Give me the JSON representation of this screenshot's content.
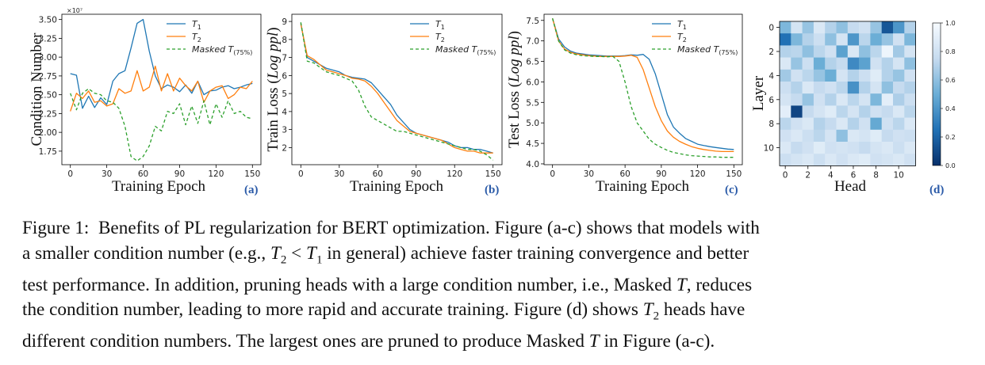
{
  "chart_data": [
    {
      "panel": "(a)",
      "type": "line",
      "xlabel": "Training Epoch",
      "ylabel": "Condition Number",
      "y_scale_note": "×10⁷",
      "xticks": [
        0,
        30,
        60,
        90,
        120,
        150
      ],
      "yticks": [
        "1.75",
        "2.00",
        "2.25",
        "2.50",
        "2.75",
        "3.00",
        "3.25",
        "3.50"
      ],
      "xlim": [
        -7,
        157
      ],
      "ylim": [
        1.57,
        3.57
      ],
      "legend_loc": "upper right",
      "x": [
        0,
        5,
        10,
        15,
        20,
        25,
        30,
        35,
        40,
        45,
        50,
        55,
        60,
        65,
        70,
        75,
        80,
        85,
        90,
        95,
        100,
        105,
        110,
        115,
        120,
        125,
        130,
        135,
        140,
        145,
        150
      ],
      "series": [
        {
          "name": "T1",
          "style": "solid",
          "color": "#1f77b4",
          "values": [
            2.78,
            2.76,
            2.32,
            2.48,
            2.33,
            2.46,
            2.37,
            2.68,
            2.78,
            2.82,
            3.12,
            3.45,
            3.5,
            3.08,
            2.75,
            2.58,
            2.63,
            2.6,
            2.54,
            2.63,
            2.52,
            2.68,
            2.5,
            2.55,
            2.56,
            2.6,
            2.62,
            2.58,
            2.6,
            2.63,
            2.65
          ]
        },
        {
          "name": "T2",
          "style": "solid",
          "color": "#ff7f0e",
          "values": [
            2.28,
            2.52,
            2.45,
            2.55,
            2.4,
            2.42,
            2.35,
            2.38,
            2.58,
            2.52,
            2.55,
            2.82,
            2.55,
            2.6,
            2.88,
            2.55,
            2.78,
            2.55,
            2.72,
            2.62,
            2.55,
            2.68,
            2.4,
            2.55,
            2.6,
            2.62,
            2.45,
            2.5,
            2.6,
            2.58,
            2.68
          ]
        },
        {
          "name": "Masked T(75%)",
          "style": "dashed",
          "color": "#2ca02c",
          "values": [
            2.52,
            2.3,
            2.52,
            2.58,
            2.52,
            2.5,
            2.42,
            2.4,
            2.32,
            2.08,
            1.68,
            1.62,
            1.68,
            1.82,
            2.08,
            2.02,
            2.28,
            2.25,
            2.38,
            2.1,
            2.35,
            2.12,
            2.42,
            2.1,
            2.38,
            2.2,
            2.42,
            2.25,
            2.28,
            2.2,
            2.18
          ]
        }
      ]
    },
    {
      "panel": "(b)",
      "type": "line",
      "xlabel": "Training Epoch",
      "ylabel": "Train Loss (Log ppl)",
      "xticks": [
        0,
        30,
        60,
        90,
        120,
        150
      ],
      "yticks": [
        "2",
        "3",
        "4",
        "5",
        "6",
        "7",
        "8",
        "9"
      ],
      "xlim": [
        -7,
        157
      ],
      "ylim": [
        1.05,
        9.4
      ],
      "legend_loc": "upper right",
      "x": [
        0,
        5,
        10,
        15,
        20,
        25,
        30,
        35,
        40,
        45,
        50,
        55,
        60,
        65,
        70,
        75,
        80,
        85,
        90,
        95,
        100,
        105,
        110,
        115,
        120,
        125,
        130,
        135,
        140,
        145,
        150
      ],
      "series": [
        {
          "name": "T1",
          "style": "solid",
          "color": "#1f77b4",
          "values": [
            8.9,
            7.0,
            6.8,
            6.6,
            6.4,
            6.3,
            6.2,
            6.0,
            5.9,
            5.85,
            5.8,
            5.6,
            5.2,
            4.8,
            4.4,
            3.8,
            3.4,
            3.0,
            2.8,
            2.7,
            2.6,
            2.5,
            2.4,
            2.3,
            2.1,
            2.0,
            2.0,
            1.9,
            1.9,
            1.8,
            1.7
          ]
        },
        {
          "name": "T2",
          "style": "solid",
          "color": "#ff7f0e",
          "values": [
            8.85,
            7.1,
            6.9,
            6.6,
            6.3,
            6.2,
            6.1,
            6.0,
            5.85,
            5.8,
            5.7,
            5.4,
            5.0,
            4.5,
            4.0,
            3.5,
            3.2,
            2.9,
            2.8,
            2.7,
            2.6,
            2.5,
            2.4,
            2.2,
            2.0,
            1.9,
            1.8,
            1.8,
            1.7,
            1.7,
            1.7
          ]
        },
        {
          "name": "Masked T(75%)",
          "style": "dashed",
          "color": "#2ca02c",
          "values": [
            8.95,
            6.8,
            6.7,
            6.45,
            6.2,
            6.1,
            6.0,
            5.85,
            5.7,
            5.2,
            4.3,
            3.7,
            3.5,
            3.3,
            3.1,
            2.9,
            2.9,
            2.8,
            2.7,
            2.6,
            2.5,
            2.4,
            2.3,
            2.2,
            2.1,
            2.0,
            1.9,
            1.9,
            1.8,
            1.6,
            1.3
          ]
        }
      ]
    },
    {
      "panel": "(c)",
      "type": "line",
      "xlabel": "Training Epoch",
      "ylabel": "Test Loss (Log ppl)",
      "xticks": [
        0,
        30,
        60,
        90,
        120,
        150
      ],
      "yticks": [
        "4.0",
        "4.5",
        "5.0",
        "5.5",
        "6.0",
        "6.5",
        "7.0",
        "7.5"
      ],
      "xlim": [
        -7,
        157
      ],
      "ylim": [
        3.98,
        7.65
      ],
      "legend_loc": "upper right",
      "x": [
        0,
        5,
        10,
        15,
        20,
        25,
        30,
        35,
        40,
        45,
        50,
        55,
        60,
        65,
        70,
        75,
        80,
        85,
        90,
        95,
        100,
        105,
        110,
        115,
        120,
        125,
        130,
        135,
        140,
        145,
        150
      ],
      "series": [
        {
          "name": "T1",
          "style": "solid",
          "color": "#1f77b4",
          "values": [
            7.55,
            7.05,
            6.85,
            6.75,
            6.7,
            6.68,
            6.66,
            6.65,
            6.64,
            6.63,
            6.63,
            6.63,
            6.64,
            6.66,
            6.65,
            6.67,
            6.55,
            6.2,
            5.7,
            5.2,
            4.9,
            4.75,
            4.62,
            4.55,
            4.48,
            4.45,
            4.42,
            4.4,
            4.38,
            4.36,
            4.35
          ]
        },
        {
          "name": "T2",
          "style": "solid",
          "color": "#ff7f0e",
          "values": [
            7.55,
            7.0,
            6.8,
            6.72,
            6.68,
            6.66,
            6.64,
            6.63,
            6.62,
            6.62,
            6.62,
            6.62,
            6.63,
            6.65,
            6.6,
            6.3,
            5.85,
            5.4,
            5.05,
            4.8,
            4.65,
            4.55,
            4.48,
            4.42,
            4.38,
            4.35,
            4.33,
            4.31,
            4.3,
            4.3,
            4.3
          ]
        },
        {
          "name": "Masked T(75%)",
          "style": "dashed",
          "color": "#2ca02c",
          "values": [
            7.55,
            7.0,
            6.78,
            6.7,
            6.66,
            6.64,
            6.63,
            6.62,
            6.62,
            6.61,
            6.62,
            6.5,
            6.0,
            5.4,
            5.0,
            4.8,
            4.6,
            4.48,
            4.4,
            4.33,
            4.28,
            4.25,
            4.22,
            4.2,
            4.19,
            4.18,
            4.17,
            4.17,
            4.16,
            4.16,
            4.16
          ]
        }
      ]
    },
    {
      "panel": "(d)",
      "type": "heatmap",
      "xlabel": "Head",
      "ylabel": "Layer",
      "xticks": [
        0,
        2,
        4,
        6,
        8,
        10
      ],
      "yticks": [
        0,
        2,
        4,
        6,
        8,
        10
      ],
      "colorbar_ticks": [
        "0.0",
        "0.2",
        "0.4",
        "0.6",
        "0.8",
        "1.0"
      ],
      "colormap": "Blues_r",
      "values": [
        [
          0.55,
          0.82,
          0.62,
          0.85,
          0.7,
          0.6,
          0.75,
          0.8,
          0.62,
          0.15,
          0.4,
          0.7
        ],
        [
          0.25,
          0.55,
          0.7,
          0.78,
          0.6,
          0.82,
          0.4,
          0.72,
          0.5,
          0.62,
          0.8,
          0.55
        ],
        [
          0.7,
          0.72,
          0.6,
          0.72,
          0.8,
          0.45,
          0.85,
          0.6,
          0.72,
          0.95,
          0.65,
          0.82
        ],
        [
          0.85,
          0.62,
          0.78,
          0.5,
          0.7,
          0.75,
          0.35,
          0.45,
          0.8,
          0.7,
          0.82,
          0.6
        ],
        [
          0.65,
          0.8,
          0.72,
          0.62,
          0.5,
          0.82,
          0.7,
          0.78,
          0.88,
          0.7,
          0.62,
          0.8
        ],
        [
          0.78,
          0.7,
          0.85,
          0.75,
          0.8,
          0.72,
          0.38,
          0.7,
          0.82,
          0.6,
          0.75,
          0.7
        ],
        [
          0.82,
          0.75,
          0.62,
          0.8,
          0.7,
          0.85,
          0.72,
          0.82,
          0.55,
          0.9,
          0.68,
          0.78
        ],
        [
          0.9,
          0.08,
          0.75,
          0.82,
          0.88,
          0.72,
          0.82,
          0.7,
          0.8,
          0.75,
          0.85,
          0.72
        ],
        [
          0.72,
          0.8,
          0.85,
          0.7,
          0.75,
          0.85,
          0.7,
          0.8,
          0.48,
          0.8,
          0.72,
          0.85
        ],
        [
          0.8,
          0.85,
          0.78,
          0.72,
          0.82,
          0.6,
          0.85,
          0.82,
          0.88,
          0.75,
          0.8,
          0.78
        ],
        [
          0.85,
          0.75,
          0.8,
          0.88,
          0.8,
          0.82,
          0.8,
          0.75,
          0.82,
          0.85,
          0.78,
          0.85
        ],
        [
          0.78,
          0.82,
          0.85,
          0.78,
          0.85,
          0.8,
          0.85,
          0.88,
          0.8,
          0.82,
          0.85,
          0.8
        ]
      ]
    }
  ],
  "labels": {
    "legend_t1_base": "T",
    "legend_t1_sub": "1",
    "legend_t2_base": "T",
    "legend_t2_sub": "2",
    "legend_masked_base": "Masked T",
    "legend_masked_sub": "(75%)",
    "ylabel_b_main": "Train Loss (",
    "ylabel_b_ital": "Log ppl",
    "ylabel_b_end": ")",
    "ylabel_c_main": "Test Loss (",
    "ylabel_c_ital": "Log ppl",
    "ylabel_c_end": ")"
  },
  "caption": {
    "lines": [
      "Figure 1:  Benefits of PL regularization for BERT optimization. Figure (a-c) shows that models with",
      "a smaller condition number (e.g., T₂ < T₁ in general) achieve faster training convergence and better",
      "test performance. In addition, pruning heads with a large condition number, i.e., Masked T, reduces",
      "the condition number, leading to more rapid and accurate training. Figure (d) shows T₂ heads have",
      "different condition numbers. The largest ones are pruned to produce Masked T in Figure (a-c)."
    ]
  }
}
